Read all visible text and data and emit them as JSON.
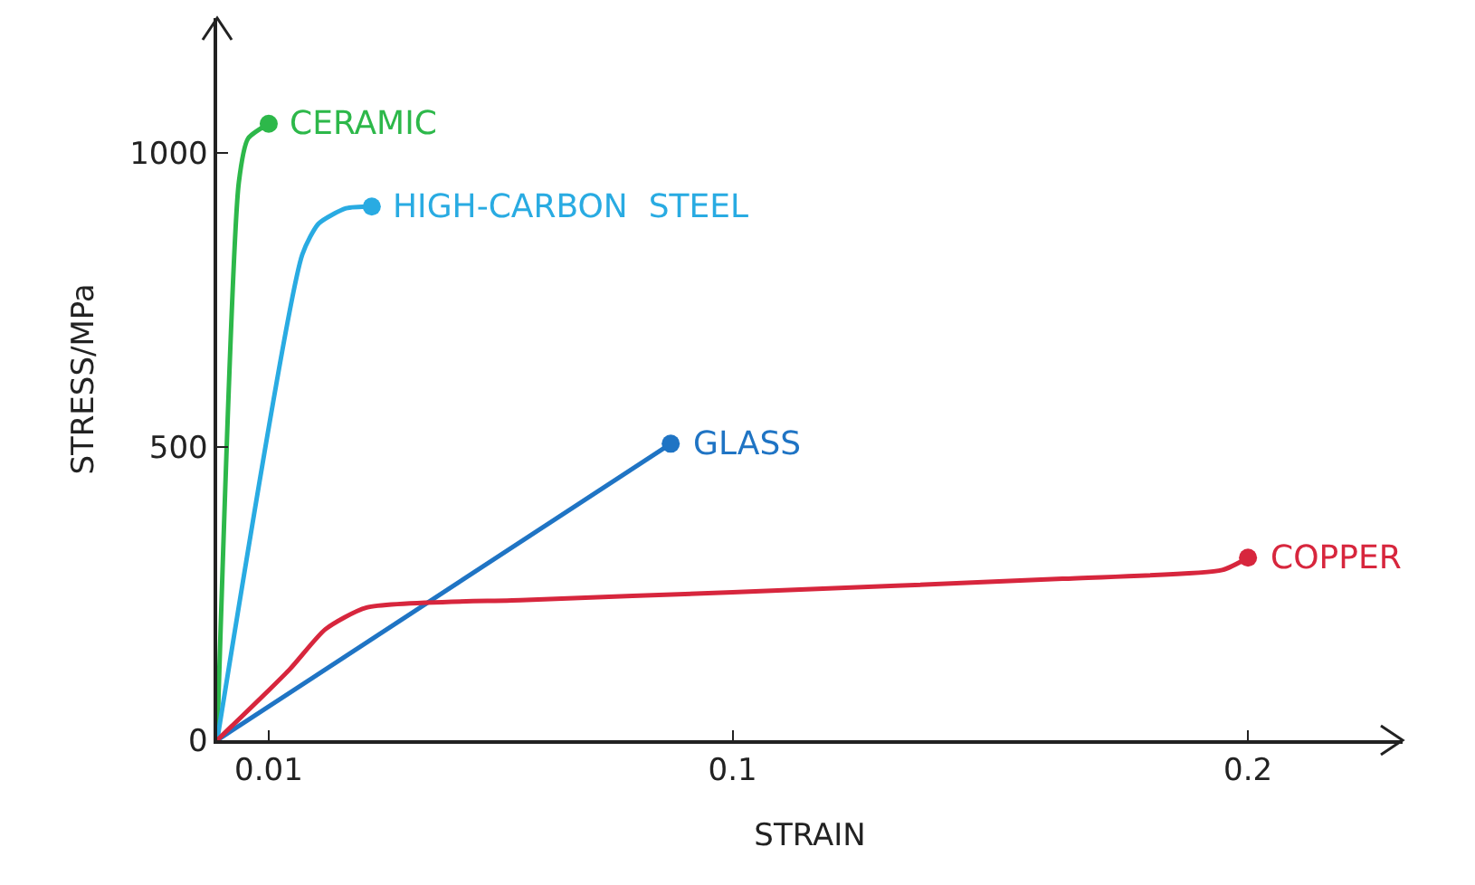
{
  "chart_data": {
    "type": "line",
    "xlabel": "STRAIN",
    "ylabel": "STRESS/MPa",
    "xlim": [
      0,
      0.23
    ],
    "xticks": [
      0.01,
      0.1,
      0.2
    ],
    "ylim": [
      0,
      1230
    ],
    "yticks": [
      0,
      500,
      1000
    ],
    "grid": false,
    "legend": false,
    "line_style": "solid",
    "series": [
      {
        "name": "CERAMIC",
        "color": "#2db84a",
        "x": [
          0,
          0.0042,
          0.006,
          0.01
        ],
        "values": [
          0,
          950,
          1025,
          1050
        ]
      },
      {
        "name": "HIGH-CARBON  STEEL",
        "color": "#29abe2",
        "x": [
          0,
          0.0165,
          0.0197,
          0.025,
          0.03
        ],
        "values": [
          0,
          827,
          880,
          906,
          909
        ]
      },
      {
        "name": "GLASS",
        "color": "#1f74c4",
        "x": [
          0,
          0.088
        ],
        "values": [
          0,
          505
        ]
      },
      {
        "name": "COPPER",
        "color": "#d7263d",
        "x": [
          0,
          0.014,
          0.021,
          0.029,
          0.06,
          0.1,
          0.164,
          0.195,
          0.2
        ],
        "values": [
          0,
          120,
          189,
          226,
          239,
          252,
          275,
          290,
          311
        ]
      }
    ]
  }
}
